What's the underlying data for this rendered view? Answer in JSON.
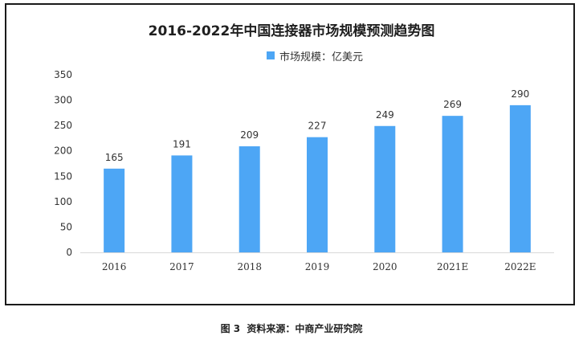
{
  "chart_data": {
    "type": "bar",
    "title": "2016-2022年中国连接器市场规模预测趋势图",
    "categories": [
      "2016",
      "2017",
      "2018",
      "2019",
      "2020",
      "2021E",
      "2022E"
    ],
    "series": [
      {
        "name": "市场规模：亿美元",
        "values": [
          165,
          191,
          209,
          227,
          249,
          269,
          290
        ]
      }
    ],
    "ylim": [
      0,
      350
    ],
    "yticks": [
      0,
      50,
      100,
      150,
      200,
      250,
      300,
      350
    ],
    "ytick_labels": [
      "0",
      "50",
      "100",
      "150",
      "200",
      "250",
      "300",
      "350"
    ],
    "xlabel": "",
    "ylabel": "",
    "grid": false,
    "legend_position": "top-center",
    "bar_color": "#4da6f5"
  },
  "caption": {
    "figure_label": "图 3",
    "source_text": "资料来源：中商产业研究院"
  }
}
